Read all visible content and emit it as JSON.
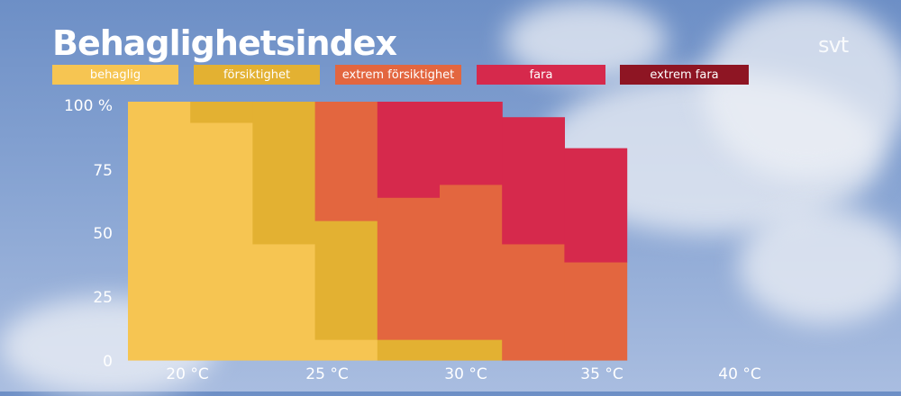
{
  "header": {
    "title": "Behaglighetsindex",
    "logo": "svt"
  },
  "colors": {
    "behaglig": "#f6c552",
    "forsiktighet": "#e3b132",
    "extrem_forsiktighet": "#e3663f",
    "fara": "#d6294c",
    "extrem_fara": "#8e1523"
  },
  "chart_data": {
    "type": "area",
    "title": "Behaglighetsindex",
    "xlabel": "",
    "ylabel": "",
    "x_tick_labels": [
      "20 °C",
      "25 °C",
      "30 °C",
      "35 °C",
      "40 °C"
    ],
    "y_tick_labels": [
      "100 %",
      "75",
      "50",
      "25",
      "0"
    ],
    "xlim": [
      17.5,
      42.5
    ],
    "ylim": [
      0,
      100
    ],
    "grid": false,
    "legend_position": "top",
    "stacked": true,
    "step": true,
    "x": [
      18.5,
      21,
      23.5,
      26,
      28.5,
      31,
      33.5,
      36,
      38.5,
      41
    ],
    "series": [
      {
        "name": "behaglig",
        "color": "#f6c552",
        "values": [
          100,
          92,
          45,
          8,
          0,
          0,
          0,
          0,
          0,
          0
        ]
      },
      {
        "name": "försiktighet",
        "color": "#e3b132",
        "values": [
          0,
          8,
          55,
          46,
          8,
          8,
          0,
          0,
          0,
          0
        ]
      },
      {
        "name": "extrem försiktighet",
        "color": "#e3663f",
        "values": [
          0,
          0,
          0,
          46,
          55,
          60,
          45,
          38,
          0,
          0
        ]
      },
      {
        "name": "fara",
        "color": "#d6294c",
        "values": [
          0,
          0,
          0,
          0,
          37,
          32,
          49,
          44,
          0,
          0
        ]
      },
      {
        "name": "extrem fara",
        "color": "#8e1523",
        "values": [
          0,
          0,
          0,
          0,
          0,
          0,
          0,
          0,
          0,
          0
        ]
      }
    ]
  }
}
